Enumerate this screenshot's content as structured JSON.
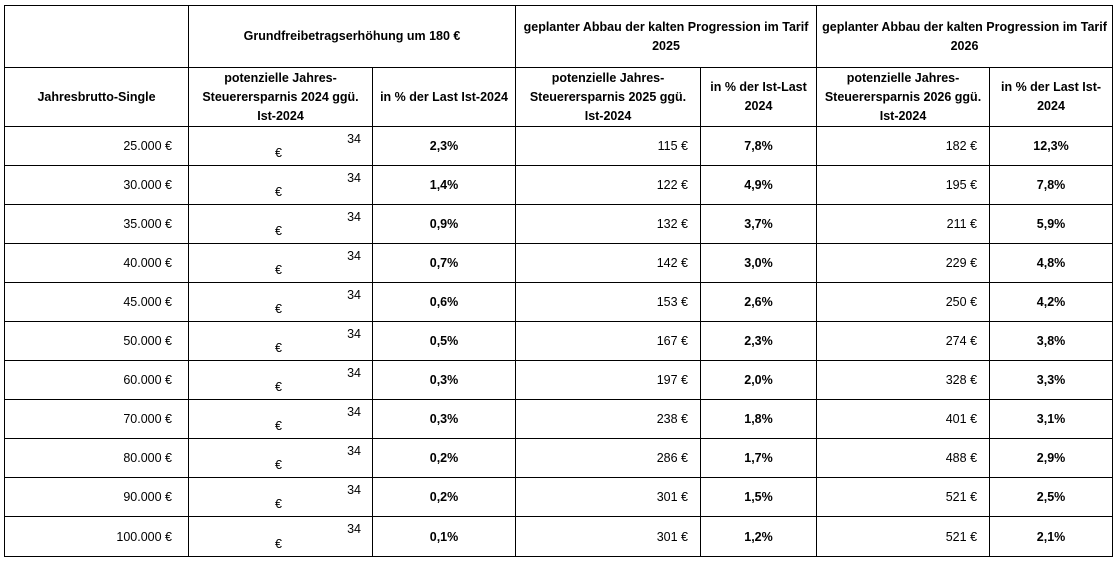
{
  "header": {
    "grundfrei": "Grundfreibetragserhöhung um 180 €",
    "abbau2025": "geplanter Abbau der kalten Progression im Tarif 2025",
    "abbau2026": "geplanter Abbau der kalten Progression im Tarif 2026",
    "brutto": "Jahresbrutto-Single",
    "ersparnis2024": "potenzielle Jahres-Steuerersparnis 2024 ggü. Ist-2024",
    "pct2024": "in % der Last Ist-2024",
    "ersparnis2025": "potenzielle Jahres-Steuerersparnis 2025 ggü. Ist-2024",
    "pct2025": "in % der Ist-Last 2024",
    "ersparnis2026": "potenzielle Jahres-Steuerersparnis 2026 ggü. Ist-2024",
    "pct2026": "in % der Last Ist-2024"
  },
  "rows": [
    {
      "brutto": "25.000 €",
      "e2024": "34",
      "eur": "€",
      "p2024": "2,3%",
      "e2025": "115 €",
      "p2025": "7,8%",
      "e2026": "182 €",
      "p2026": "12,3%"
    },
    {
      "brutto": "30.000 €",
      "e2024": "34",
      "eur": "€",
      "p2024": "1,4%",
      "e2025": "122 €",
      "p2025": "4,9%",
      "e2026": "195 €",
      "p2026": "7,8%"
    },
    {
      "brutto": "35.000 €",
      "e2024": "34",
      "eur": "€",
      "p2024": "0,9%",
      "e2025": "132 €",
      "p2025": "3,7%",
      "e2026": "211 €",
      "p2026": "5,9%"
    },
    {
      "brutto": "40.000 €",
      "e2024": "34",
      "eur": "€",
      "p2024": "0,7%",
      "e2025": "142 €",
      "p2025": "3,0%",
      "e2026": "229 €",
      "p2026": "4,8%"
    },
    {
      "brutto": "45.000 €",
      "e2024": "34",
      "eur": "€",
      "p2024": "0,6%",
      "e2025": "153 €",
      "p2025": "2,6%",
      "e2026": "250 €",
      "p2026": "4,2%"
    },
    {
      "brutto": "50.000 €",
      "e2024": "34",
      "eur": "€",
      "p2024": "0,5%",
      "e2025": "167 €",
      "p2025": "2,3%",
      "e2026": "274 €",
      "p2026": "3,8%"
    },
    {
      "brutto": "60.000 €",
      "e2024": "34",
      "eur": "€",
      "p2024": "0,3%",
      "e2025": "197 €",
      "p2025": "2,0%",
      "e2026": "328 €",
      "p2026": "3,3%"
    },
    {
      "brutto": "70.000 €",
      "e2024": "34",
      "eur": "€",
      "p2024": "0,3%",
      "e2025": "238 €",
      "p2025": "1,8%",
      "e2026": "401 €",
      "p2026": "3,1%"
    },
    {
      "brutto": "80.000 €",
      "e2024": "34",
      "eur": "€",
      "p2024": "0,2%",
      "e2025": "286 €",
      "p2025": "1,7%",
      "e2026": "488 €",
      "p2026": "2,9%"
    },
    {
      "brutto": "90.000 €",
      "e2024": "34",
      "eur": "€",
      "p2024": "0,2%",
      "e2025": "301 €",
      "p2025": "1,5%",
      "e2026": "521 €",
      "p2026": "2,5%"
    },
    {
      "brutto": "100.000 €",
      "e2024": "34",
      "eur": "€",
      "p2024": "0,1%",
      "e2025": "301 €",
      "p2025": "1,2%",
      "e2026": "521 €",
      "p2026": "2,1%"
    }
  ]
}
